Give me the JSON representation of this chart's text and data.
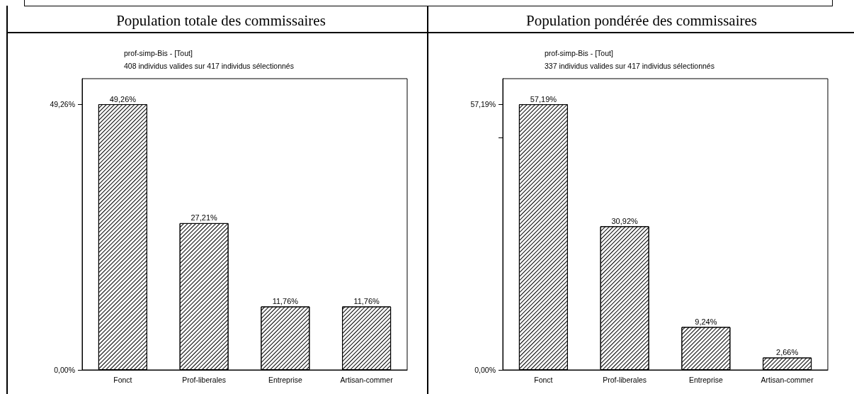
{
  "chart_data": [
    {
      "type": "bar",
      "title": "Population totale des commissaires",
      "subtitle": "prof-simp-Bis - [Tout]",
      "annotations": [
        "408 individus valides sur 417 individus sélectionnés"
      ],
      "categories": [
        "Fonct",
        "Prof-liberales",
        "Entreprise",
        "Artisan-commer"
      ],
      "values": [
        49.26,
        27.21,
        11.76,
        11.76
      ],
      "value_labels": [
        "49,26%",
        "27,21%",
        "11,76%",
        "11,76%"
      ],
      "ylim": [
        0,
        54
      ],
      "yticks": [
        {
          "value": 0,
          "label": "0,00%"
        },
        {
          "value": 49.26,
          "label": "49,26%"
        }
      ]
    },
    {
      "type": "bar",
      "title": "Population pondérée des commissaires",
      "subtitle": "prof-simp-Bis - [Tout]",
      "annotations": [
        "337 individus valides sur 417 individus sélectionnés"
      ],
      "categories": [
        "Fonct",
        "Prof-liberales",
        "Entreprise",
        "Artisan-commer"
      ],
      "values": [
        57.19,
        30.92,
        9.24,
        2.66
      ],
      "value_labels": [
        "57,19%",
        "30,92%",
        "9,24%",
        "2,66%"
      ],
      "ylim": [
        0,
        62.7
      ],
      "yticks": [
        {
          "value": 0,
          "label": "0,00%"
        },
        {
          "value": 50,
          "label": null
        },
        {
          "value": 57.19,
          "label": "57,19%"
        }
      ]
    }
  ]
}
